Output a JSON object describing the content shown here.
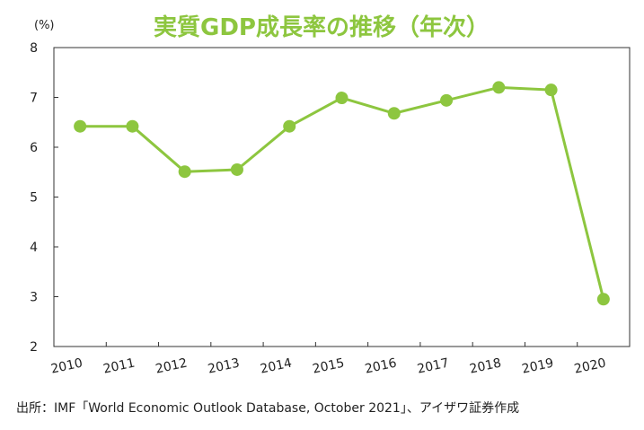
{
  "colors": {
    "accent": "#8dc63f",
    "line": "#8dc63f",
    "axis": "#333333"
  },
  "chart_data": {
    "type": "line",
    "title": "実質GDP成長率の推移（年次）",
    "unit_label": "(%)",
    "x": [
      "2010",
      "2011",
      "2012",
      "2013",
      "2014",
      "2015",
      "2016",
      "2017",
      "2018",
      "2019",
      "2020"
    ],
    "series": [
      {
        "values": [
          6.42,
          6.42,
          5.51,
          5.55,
          6.42,
          6.99,
          6.68,
          6.94,
          7.2,
          7.15,
          2.95
        ]
      }
    ],
    "ylim": [
      2,
      8
    ],
    "yticks": [
      "2",
      "3",
      "4",
      "5",
      "6",
      "7",
      "8"
    ],
    "grid": false,
    "legend": "none"
  },
  "source": "出所：IMF「World Economic Outlook Database, October 2021」、アイザワ証券作成"
}
